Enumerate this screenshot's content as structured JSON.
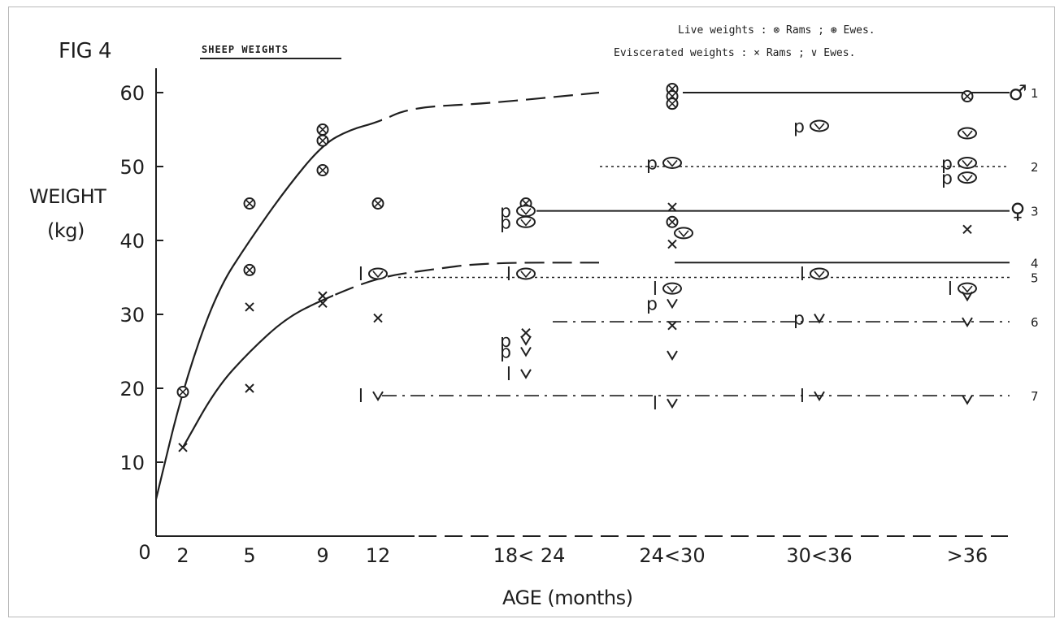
{
  "figure_label": "FIG 4",
  "chart_data": {
    "type": "scatter",
    "title": "SHEEP WEIGHTS",
    "xlabel": "AGE (months)",
    "ylabel": [
      "WEIGHT",
      "(kg)"
    ],
    "x_ticks": [
      "2",
      "5",
      "9",
      "12",
      "18< 24",
      "24<30",
      "30<36",
      ">36"
    ],
    "y_ticks": [
      "0",
      "10",
      "20",
      "30",
      "40",
      "50",
      "60"
    ],
    "ylim": [
      0,
      60
    ],
    "grid": false,
    "legend_position": "top-right",
    "legend": [
      {
        "label": "Live weights :",
        "rams": "Rams",
        "ewes": "Ewes."
      },
      {
        "label": "Eviscerated weights :",
        "rams": "Rams",
        "ewes": "Ewes."
      }
    ],
    "legend_text": [
      "Live weights : ⊗ Rams ; ⊛ Ewes.",
      "Eviscerated weights : × Rams ; ∨ Ewes."
    ],
    "level_labels": [
      "1",
      "2",
      "3",
      "4",
      "5",
      "6",
      "7"
    ],
    "sex_symbols": [
      "♂",
      "♀"
    ],
    "series": [
      {
        "kind": "live-rams",
        "points": [
          {
            "x": "2",
            "y": 19.5
          },
          {
            "x": "5",
            "y": 45
          },
          {
            "x": "5",
            "y": 36
          },
          {
            "x": "9",
            "y": 55
          },
          {
            "x": "9",
            "y": 53.5
          },
          {
            "x": "9",
            "y": 49.5
          },
          {
            "x": "12",
            "y": 45
          },
          {
            "x": "18< 24",
            "y": 45
          },
          {
            "x": "24<30",
            "y": 60.5
          },
          {
            "x": "24<30",
            "y": 59.5
          },
          {
            "x": "24<30",
            "y": 58.5
          },
          {
            "x": "24<30",
            "y": 42.5
          },
          {
            "x": ">36",
            "y": 59.5
          }
        ]
      },
      {
        "kind": "live-ewes",
        "points": [
          {
            "x": "12",
            "y": 35.5,
            "prefix": "l"
          },
          {
            "x": "18< 24",
            "y": 44,
            "prefix": "p"
          },
          {
            "x": "18< 24",
            "y": 42.5,
            "prefix": "p"
          },
          {
            "x": "18< 24",
            "y": 35.5,
            "prefix": "l"
          },
          {
            "x": "24<30",
            "y": 50.5,
            "prefix": "p"
          },
          {
            "x": "24<30",
            "y": 41
          },
          {
            "x": "24<30",
            "y": 33.5,
            "prefix": "l"
          },
          {
            "x": "30<36",
            "y": 55.5,
            "prefix": "p"
          },
          {
            "x": "30<36",
            "y": 35.5,
            "prefix": "l"
          },
          {
            "x": ">36",
            "y": 54.5
          },
          {
            "x": ">36",
            "y": 50.5,
            "prefix": "p"
          },
          {
            "x": ">36",
            "y": 48.5,
            "prefix": "p"
          },
          {
            "x": ">36",
            "y": 33.5,
            "prefix": "l"
          }
        ]
      },
      {
        "kind": "eviscerated-rams",
        "points": [
          {
            "x": "2",
            "y": 12
          },
          {
            "x": "5",
            "y": 31
          },
          {
            "x": "5",
            "y": 20
          },
          {
            "x": "9",
            "y": 32.5
          },
          {
            "x": "9",
            "y": 31.5
          },
          {
            "x": "12",
            "y": 29.5
          },
          {
            "x": "18< 24",
            "y": 27.5
          },
          {
            "x": "24<30",
            "y": 44.5
          },
          {
            "x": "24<30",
            "y": 39.5
          },
          {
            "x": "24<30",
            "y": 28.5
          },
          {
            "x": ">36",
            "y": 41.5
          }
        ]
      },
      {
        "kind": "eviscerated-ewes",
        "points": [
          {
            "x": "12",
            "y": 19,
            "prefix": "l"
          },
          {
            "x": "18< 24",
            "y": 26.5,
            "prefix": "p"
          },
          {
            "x": "18< 24",
            "y": 25,
            "prefix": "p"
          },
          {
            "x": "18< 24",
            "y": 22,
            "prefix": "l"
          },
          {
            "x": "24<30",
            "y": 31.5,
            "prefix": "p"
          },
          {
            "x": "24<30",
            "y": 24.5
          },
          {
            "x": "24<30",
            "y": 18,
            "prefix": "l"
          },
          {
            "x": "30<36",
            "y": 29.5,
            "prefix": "p"
          },
          {
            "x": "30<36",
            "y": 19,
            "prefix": "l"
          },
          {
            "x": ">36",
            "y": 32.5
          },
          {
            "x": ">36",
            "y": 29
          },
          {
            "x": ">36",
            "y": 18.5
          }
        ]
      }
    ],
    "curves": [
      {
        "kind": "live",
        "points": [
          [
            0,
            5
          ],
          [
            2,
            20
          ],
          [
            3.5,
            33
          ],
          [
            5,
            40
          ],
          [
            7,
            47
          ],
          [
            9,
            53
          ],
          [
            10.5,
            55
          ],
          [
            12,
            56
          ],
          [
            14,
            58
          ],
          [
            18.5,
            58.5
          ],
          [
            24,
            60
          ]
        ]
      },
      {
        "kind": "eviscerated",
        "points": [
          [
            2,
            12
          ],
          [
            3.5,
            20
          ],
          [
            5,
            25
          ],
          [
            7,
            29.5
          ],
          [
            9,
            32
          ],
          [
            12,
            35
          ],
          [
            15,
            36
          ],
          [
            18.5,
            37
          ],
          [
            24,
            37
          ]
        ]
      }
    ],
    "reference_lines": [
      {
        "label": "1",
        "y": 60,
        "style": "solid"
      },
      {
        "label": "2",
        "y": 50,
        "style": "dotted"
      },
      {
        "label": "3",
        "y": 44,
        "style": "solid"
      },
      {
        "label": "4",
        "y": 37,
        "style": "solid"
      },
      {
        "label": "5",
        "y": 35,
        "style": "dotted"
      },
      {
        "label": "6",
        "y": 29,
        "style": "dash-dot"
      },
      {
        "label": "7",
        "y": 19,
        "style": "dash-dot"
      }
    ]
  }
}
